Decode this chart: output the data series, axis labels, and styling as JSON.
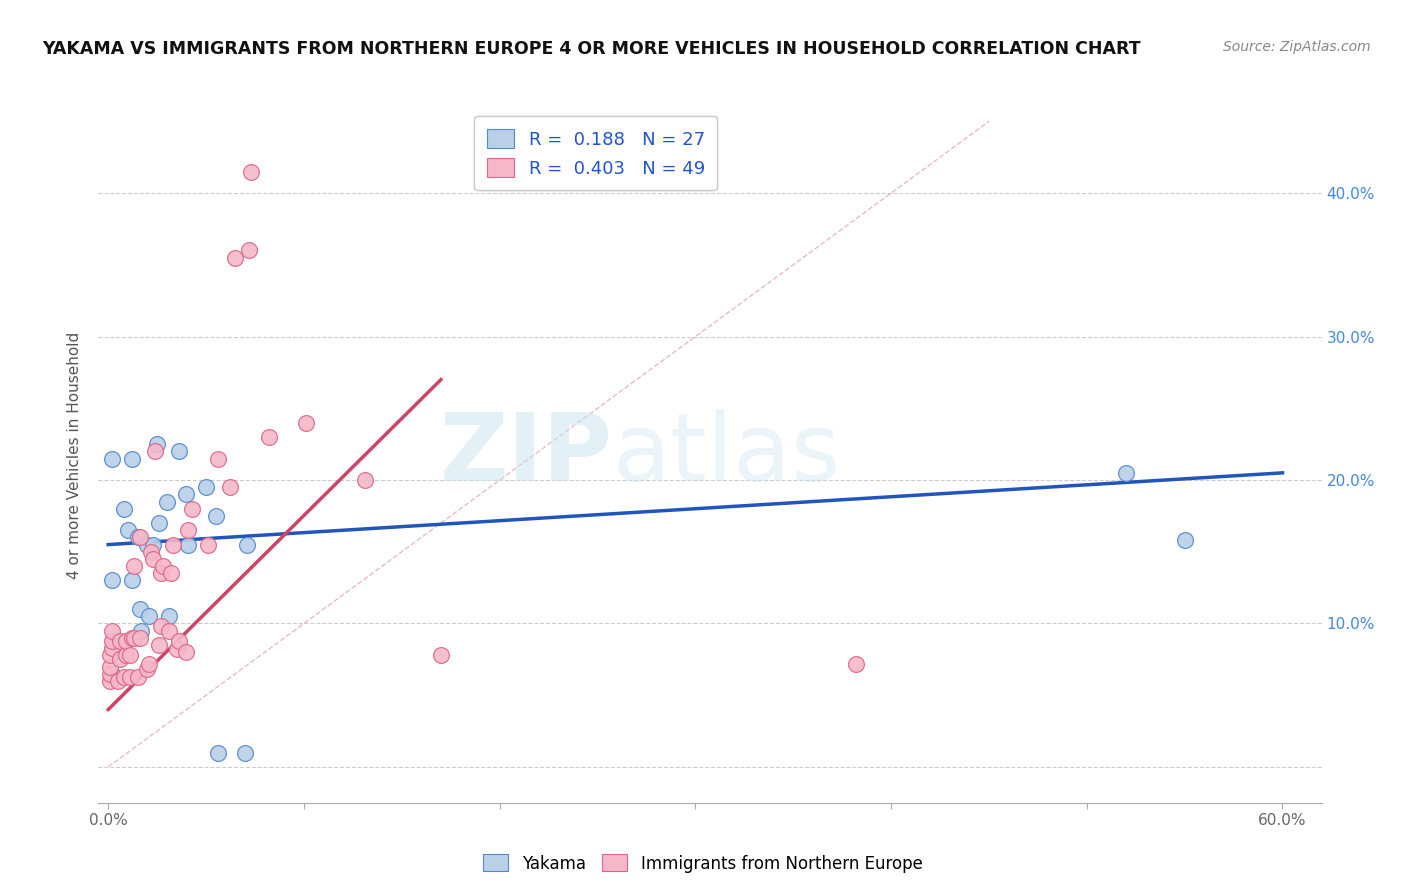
{
  "title": "YAKAMA VS IMMIGRANTS FROM NORTHERN EUROPE 4 OR MORE VEHICLES IN HOUSEHOLD CORRELATION CHART",
  "source": "Source: ZipAtlas.com",
  "ylabel": "4 or more Vehicles in Household",
  "xlim": [
    -0.005,
    0.62
  ],
  "ylim": [
    -0.025,
    0.46
  ],
  "xtick_positions": [
    0.0,
    0.1,
    0.2,
    0.3,
    0.4,
    0.5,
    0.6
  ],
  "xticklabels": [
    "0.0%",
    "",
    "",
    "",
    "",
    "",
    "60.0%"
  ],
  "ytick_right_positions": [
    0.1,
    0.2,
    0.3,
    0.4
  ],
  "ytick_right_labels": [
    "10.0%",
    "20.0%",
    "30.0%",
    "40.0%"
  ],
  "watermark_zip": "ZIP",
  "watermark_atlas": "atlas",
  "blue_R": "0.188",
  "blue_N": "27",
  "pink_R": "0.403",
  "pink_N": "49",
  "blue_fill_color": "#b8d0e8",
  "pink_fill_color": "#f5b8c8",
  "blue_edge_color": "#5588cc",
  "pink_edge_color": "#dd6688",
  "blue_line_color": "#2255bb",
  "pink_line_color": "#cc4466",
  "diag_line_color": "#cccccc",
  "blue_scatter_x": [
    0.002,
    0.002,
    0.002,
    0.008,
    0.01,
    0.012,
    0.012,
    0.015,
    0.016,
    0.017,
    0.02,
    0.021,
    0.023,
    0.025,
    0.026,
    0.03,
    0.031,
    0.036,
    0.04,
    0.041,
    0.05,
    0.055,
    0.056,
    0.07,
    0.071,
    0.52,
    0.55
  ],
  "blue_scatter_y": [
    0.215,
    0.13,
    0.065,
    0.18,
    0.165,
    0.13,
    0.215,
    0.16,
    0.11,
    0.095,
    0.155,
    0.105,
    0.155,
    0.225,
    0.17,
    0.185,
    0.105,
    0.22,
    0.19,
    0.155,
    0.195,
    0.175,
    0.01,
    0.01,
    0.155,
    0.205,
    0.158
  ],
  "pink_scatter_x": [
    0.001,
    0.001,
    0.001,
    0.001,
    0.002,
    0.002,
    0.002,
    0.005,
    0.006,
    0.006,
    0.008,
    0.009,
    0.009,
    0.011,
    0.011,
    0.012,
    0.013,
    0.013,
    0.015,
    0.016,
    0.016,
    0.02,
    0.021,
    0.022,
    0.023,
    0.024,
    0.026,
    0.027,
    0.027,
    0.028,
    0.031,
    0.032,
    0.033,
    0.035,
    0.036,
    0.04,
    0.041,
    0.043,
    0.051,
    0.056,
    0.062,
    0.065,
    0.072,
    0.073,
    0.082,
    0.101,
    0.131,
    0.17,
    0.382
  ],
  "pink_scatter_y": [
    0.06,
    0.065,
    0.07,
    0.078,
    0.083,
    0.088,
    0.095,
    0.06,
    0.075,
    0.088,
    0.063,
    0.078,
    0.088,
    0.063,
    0.078,
    0.09,
    0.09,
    0.14,
    0.063,
    0.09,
    0.16,
    0.068,
    0.072,
    0.15,
    0.145,
    0.22,
    0.085,
    0.098,
    0.135,
    0.14,
    0.095,
    0.135,
    0.155,
    0.082,
    0.088,
    0.08,
    0.165,
    0.18,
    0.155,
    0.215,
    0.195,
    0.355,
    0.36,
    0.415,
    0.23,
    0.24,
    0.2,
    0.078,
    0.072
  ],
  "blue_line_x": [
    0.0,
    0.6
  ],
  "blue_line_y": [
    0.155,
    0.205
  ],
  "pink_line_x": [
    0.0,
    0.17
  ],
  "pink_line_y": [
    0.04,
    0.27
  ],
  "diag_line_x": [
    0.0,
    0.45
  ],
  "diag_line_y": [
    0.0,
    0.45
  ]
}
